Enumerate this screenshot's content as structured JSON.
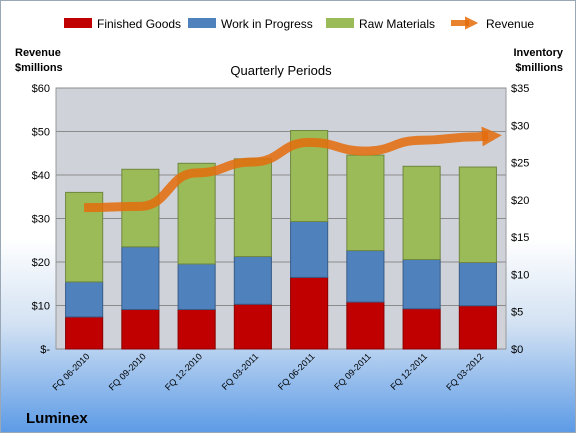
{
  "chart_data": {
    "type": "bar",
    "title": "Quarterly Periods",
    "company": "Luminex",
    "ylabel_left": [
      "Revenue",
      "$millions"
    ],
    "ylabel_right": [
      "Inventory",
      "$millions"
    ],
    "left_axis": {
      "min": 0,
      "max": 60,
      "step": 10,
      "tick_labels": [
        "$-",
        "$10",
        "$20",
        "$30",
        "$40",
        "$50",
        "$60"
      ]
    },
    "right_axis": {
      "min": 0,
      "max": 35,
      "step": 5,
      "tick_labels": [
        "$0",
        "$5",
        "$10",
        "$15",
        "$20",
        "$25",
        "$30",
        "$35"
      ]
    },
    "categories": [
      "FQ 06-2010",
      "FQ 09-2010",
      "FQ 12-2010",
      "FQ 03-2011",
      "FQ 06-2011",
      "FQ 09-2011",
      "FQ 12-2011",
      "FQ 03-2012"
    ],
    "series": [
      {
        "name": "Finished Goods",
        "axis": "right",
        "color": "#c00000",
        "values": [
          4.3,
          5.3,
          5.3,
          6.0,
          9.6,
          6.3,
          5.4,
          5.8
        ]
      },
      {
        "name": "Work in Progress",
        "axis": "right",
        "color": "#4f81bd",
        "values": [
          4.7,
          8.4,
          6.1,
          6.4,
          7.5,
          6.9,
          6.6,
          5.8
        ]
      },
      {
        "name": "Raw Materials",
        "axis": "right",
        "color": "#9bbb59",
        "values": [
          12.0,
          10.4,
          13.5,
          13.1,
          12.2,
          12.8,
          12.5,
          12.8
        ]
      },
      {
        "name": "Revenue",
        "axis": "left",
        "type": "line",
        "color": "#e46c0a",
        "values": [
          32.5,
          32.8,
          40.5,
          43.0,
          47.5,
          45.5,
          48.0,
          48.8
        ]
      }
    ],
    "grid": true,
    "legend_position": "top"
  }
}
